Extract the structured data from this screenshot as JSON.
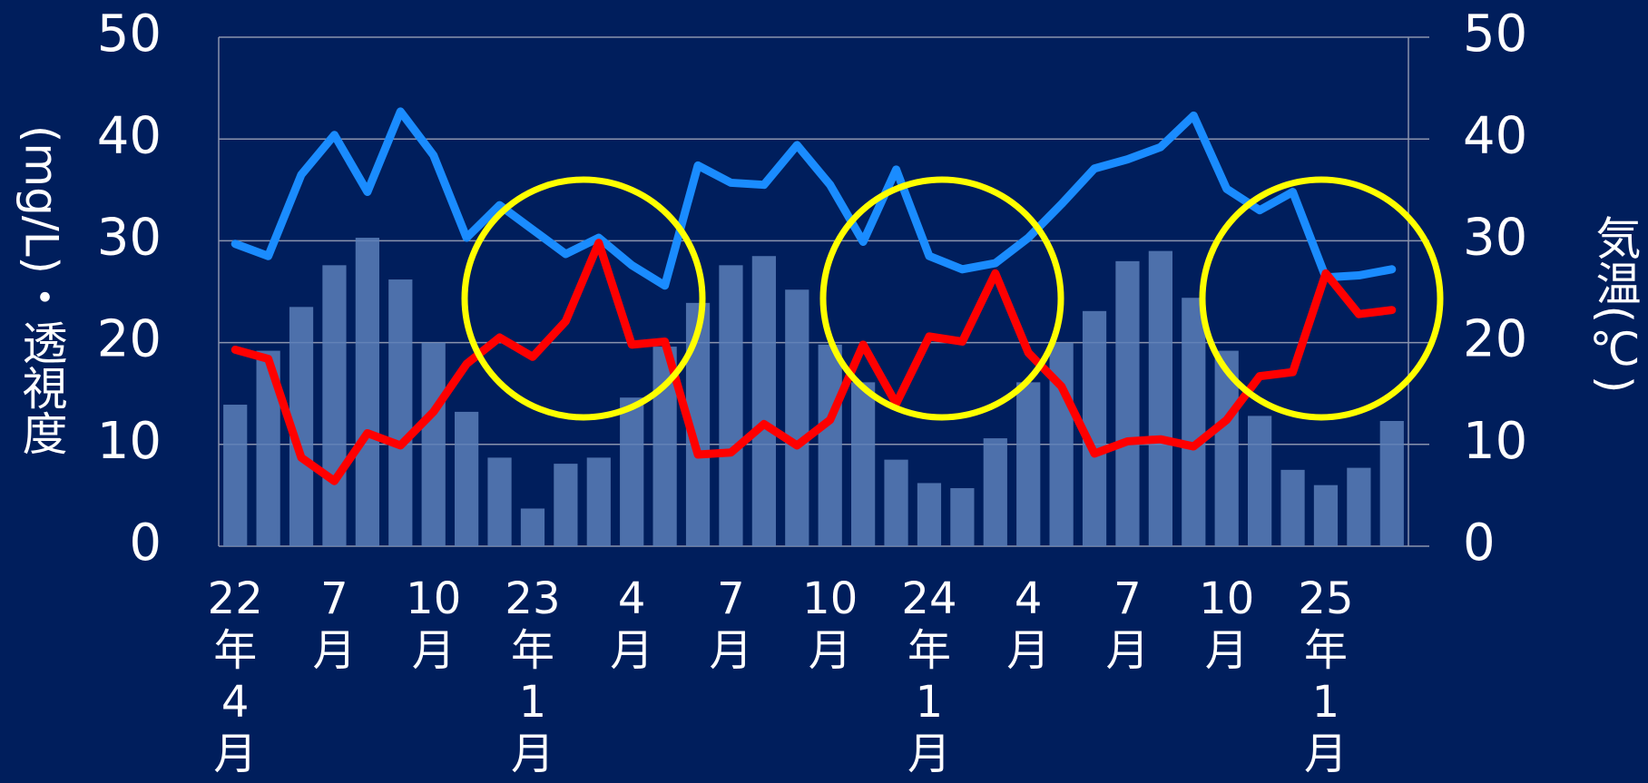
{
  "chart_data": {
    "type": "combo",
    "categories": [
      "22年4月",
      null,
      null,
      "7月",
      null,
      null,
      "10月",
      null,
      null,
      "23年1月",
      null,
      null,
      "4月",
      null,
      null,
      "7月",
      null,
      null,
      "10月",
      null,
      null,
      "24年1月",
      null,
      null,
      "4月",
      null,
      null,
      "7月",
      null,
      null,
      "10月",
      null,
      null,
      "25年1月",
      null,
      null
    ],
    "series": [
      {
        "type": "bar",
        "axis": "y2",
        "color": "#5b7fb8",
        "values": [
          13.9,
          19.2,
          23.5,
          27.6,
          30.3,
          26.2,
          20,
          13.2,
          8.7,
          3.7,
          8.1,
          8.7,
          14.6,
          19.6,
          23.9,
          27.6,
          28.5,
          25.2,
          19.8,
          16.1,
          8.5,
          6.2,
          5.7,
          10.6,
          16.1,
          20,
          23.1,
          28,
          29,
          24.4,
          19.2,
          12.8,
          7.5,
          6,
          7.7,
          12.3
        ]
      },
      {
        "type": "line",
        "color": "#1a8cff",
        "values": [
          29.7,
          28.5,
          36.5,
          40.4,
          34.8,
          42.7,
          38.4,
          30.3,
          33.5,
          31.1,
          28.7,
          30.3,
          27.6,
          25.6,
          37.4,
          35.7,
          35.5,
          39.4,
          35.5,
          29.9,
          37,
          28.5,
          27.2,
          27.8,
          30.3,
          33.6,
          37.1,
          38,
          39.2,
          42.3,
          35.1,
          33,
          34.8,
          26.4,
          26.6,
          27.2
        ]
      },
      {
        "type": "line",
        "color": "#ff0000",
        "values": [
          19.3,
          18.4,
          8.7,
          6.4,
          11.1,
          9.9,
          13.2,
          17.9,
          20.5,
          18.6,
          22.1,
          29.8,
          19.8,
          20.1,
          9,
          9.2,
          12,
          9.9,
          12.4,
          19.8,
          14,
          20.6,
          20.1,
          26.8,
          19,
          15.7,
          9.1,
          10.3,
          10.5,
          9.8,
          12.4,
          16.7,
          17.1,
          26.8,
          22.8,
          23.2
        ]
      }
    ],
    "ylabel": "(mg/L)・透視度",
    "y2label": "気温(℃)",
    "ylim": [
      0,
      50
    ],
    "yticks": [
      0,
      10,
      20,
      30,
      40,
      50
    ],
    "y2lim": [
      0,
      50
    ],
    "y2ticks": [
      0,
      10,
      20,
      30,
      40,
      50
    ],
    "grid": true
  }
}
